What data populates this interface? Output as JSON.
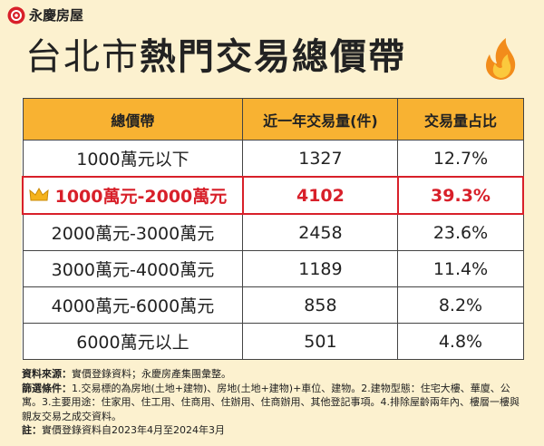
{
  "header": {
    "logo": "永慶房屋",
    "title_part1": "台北市",
    "title_part2": "熱門交易總價帶"
  },
  "table": {
    "columns": [
      "總價帶",
      "近一年交易量(件)",
      "交易量占比"
    ],
    "rows": [
      [
        "1000萬元以下",
        "1327",
        "12.7%"
      ],
      [
        "1000萬元-2000萬元",
        "4102",
        "39.3%"
      ],
      [
        "2000萬元-3000萬元",
        "2458",
        "23.6%"
      ],
      [
        "3000萬元-4000萬元",
        "1189",
        "11.4%"
      ],
      [
        "4000萬元-6000萬元",
        "858",
        "8.2%"
      ],
      [
        "6000萬元以上",
        "501",
        "4.8%"
      ]
    ]
  },
  "notes": [
    {
      "label": "資料來源：",
      "text": "實價登錄資料；永慶房產集團彙整。"
    },
    {
      "label": "篩選條件：",
      "text": "1.交易標的為房地(土地+建物)、房地(土地+建物)+車位、建物。2.建物型態：住宅大樓、華廈、公寓。3.主要用途：住家用、住工用、住商用、住辦用、住商辦用、其他登記事項。4.排除屋齡兩年內、樓層一樓與親友交易之成交資料。"
    },
    {
      "label": "註：",
      "text": "實價登錄資料自2023年4月至2024年3月"
    }
  ]
}
